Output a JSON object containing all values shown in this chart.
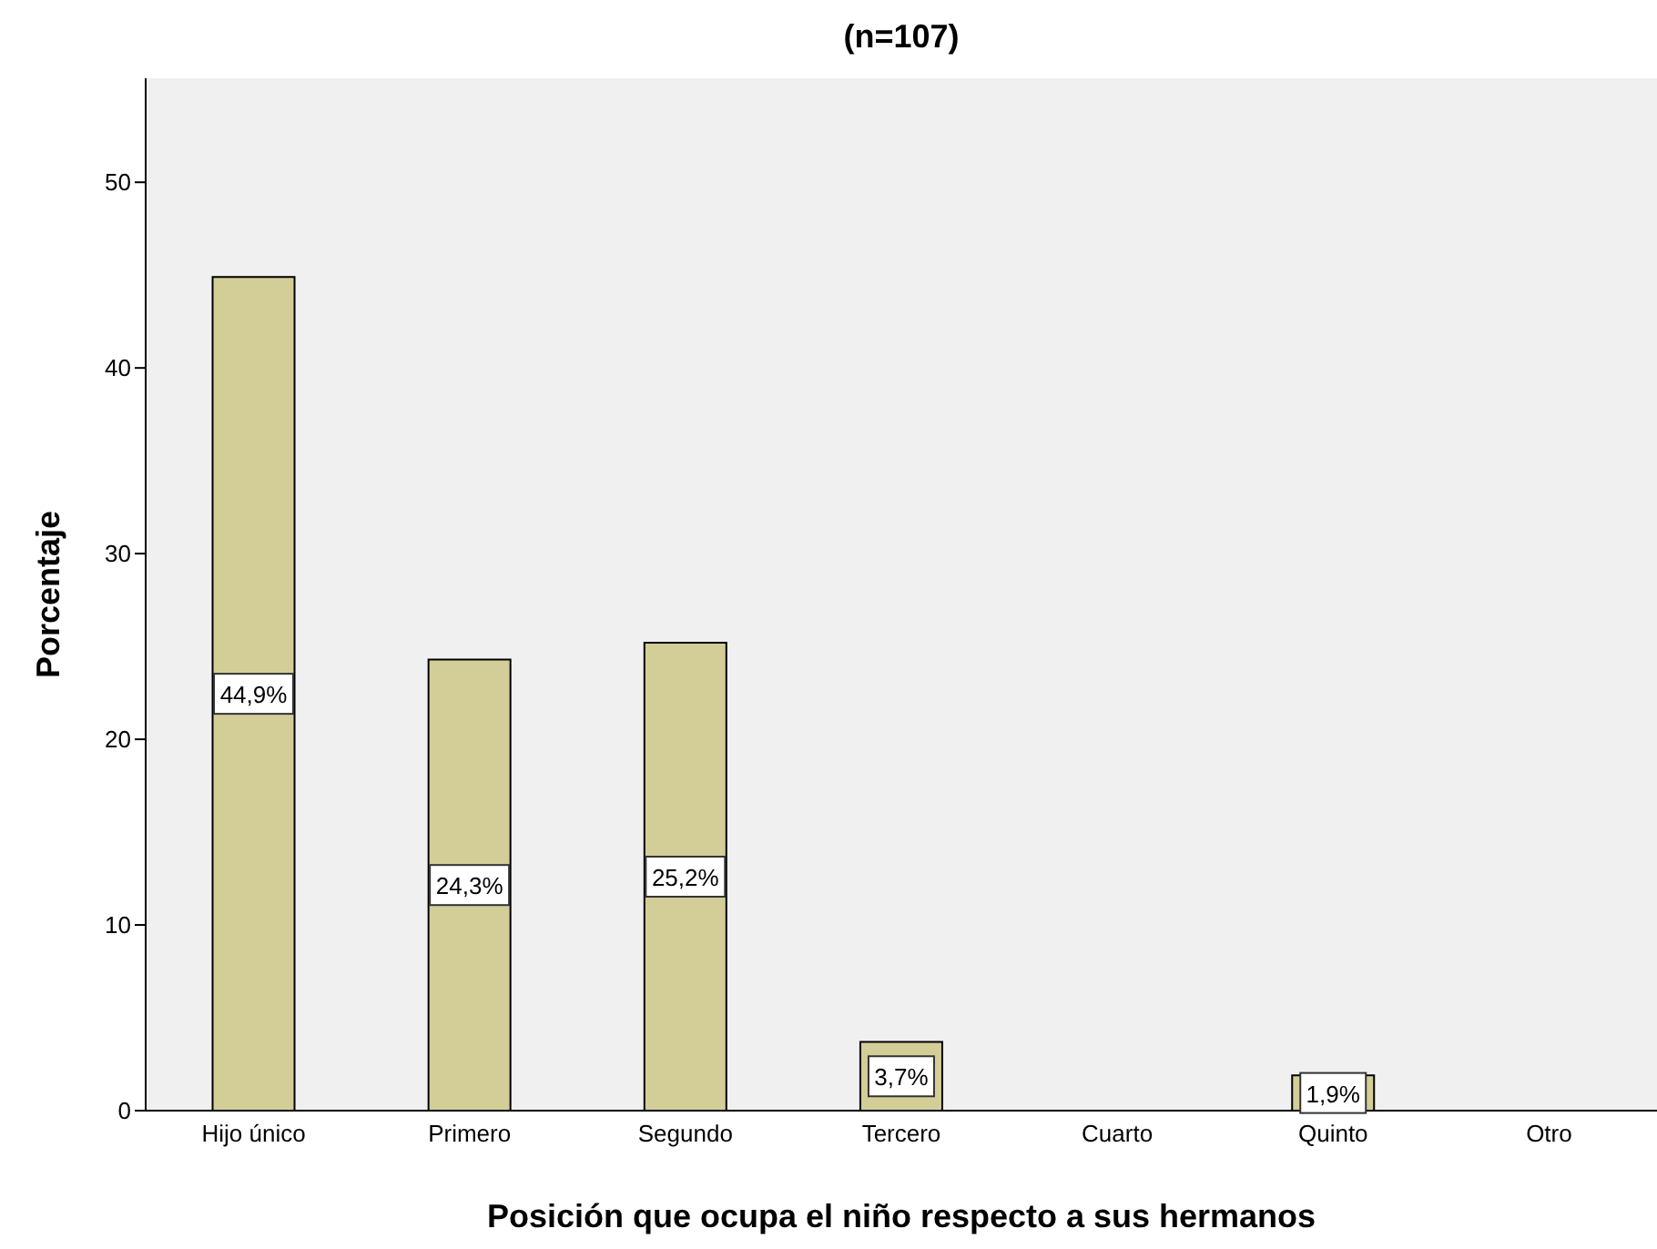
{
  "chart_data": {
    "type": "bar",
    "title": "(n=107)",
    "xlabel": "Posición que ocupa el niño respecto a sus hermanos",
    "ylabel": "Porcentaje",
    "categories": [
      "Hijo único",
      "Primero",
      "Segundo",
      "Tercero",
      "Cuarto",
      "Quinto",
      "Otro"
    ],
    "values": [
      44.9,
      24.3,
      25.2,
      3.7,
      0,
      1.9,
      0
    ],
    "value_labels": [
      "44,9%",
      "24,3%",
      "25,2%",
      "3,7%",
      null,
      "1,9%",
      null
    ],
    "color": "#d3ce97",
    "ylim": [
      0,
      55.6
    ],
    "yticks": [
      0,
      10,
      20,
      30,
      40,
      50
    ],
    "grid": false
  }
}
